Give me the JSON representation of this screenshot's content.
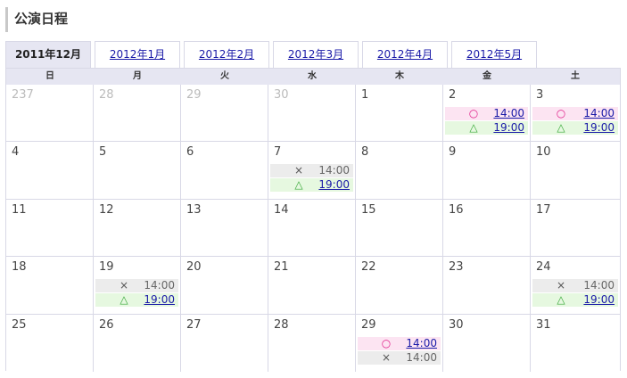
{
  "title": "公演日程",
  "tabs": [
    {
      "label": "2011年12月",
      "active": true
    },
    {
      "label": "2012年1月",
      "active": false
    },
    {
      "label": "2012年2月",
      "active": false
    },
    {
      "label": "2012年3月",
      "active": false
    },
    {
      "label": "2012年4月",
      "active": false
    },
    {
      "label": "2012年5月",
      "active": false
    }
  ],
  "weekdays": [
    "日",
    "月",
    "火",
    "水",
    "木",
    "金",
    "土"
  ],
  "marks": {
    "circle": "○",
    "triangle": "△",
    "cross": "×"
  },
  "colors": {
    "header_bg": "#e6e6f2",
    "border": "#d8d8e6",
    "circle_bg": "#fce4f2",
    "circle_mark": "#e0208a",
    "triangle_bg": "#e6f8e0",
    "triangle_mark": "#38a838",
    "cross_bg": "#ececec",
    "link": "#1a1aa8"
  },
  "weeks": [
    [
      {
        "day": "237",
        "other": true
      },
      {
        "day": "28",
        "other": true
      },
      {
        "day": "29",
        "other": true
      },
      {
        "day": "30",
        "other": true
      },
      {
        "day": "1"
      },
      {
        "day": "2",
        "perfs": [
          {
            "status": "circle",
            "time": "14:00"
          },
          {
            "status": "triangle",
            "time": "19:00"
          }
        ]
      },
      {
        "day": "3",
        "perfs": [
          {
            "status": "circle",
            "time": "14:00"
          },
          {
            "status": "triangle",
            "time": "19:00"
          }
        ]
      }
    ],
    [
      {
        "day": "4"
      },
      {
        "day": "5"
      },
      {
        "day": "6"
      },
      {
        "day": "7",
        "perfs": [
          {
            "status": "cross",
            "time": "14:00"
          },
          {
            "status": "triangle",
            "time": "19:00"
          }
        ]
      },
      {
        "day": "8"
      },
      {
        "day": "9"
      },
      {
        "day": "10"
      }
    ],
    [
      {
        "day": "11"
      },
      {
        "day": "12"
      },
      {
        "day": "13"
      },
      {
        "day": "14"
      },
      {
        "day": "15"
      },
      {
        "day": "16"
      },
      {
        "day": "17"
      }
    ],
    [
      {
        "day": "18"
      },
      {
        "day": "19",
        "perfs": [
          {
            "status": "cross",
            "time": "14:00"
          },
          {
            "status": "triangle",
            "time": "19:00"
          }
        ]
      },
      {
        "day": "20"
      },
      {
        "day": "21"
      },
      {
        "day": "22"
      },
      {
        "day": "23"
      },
      {
        "day": "24",
        "perfs": [
          {
            "status": "cross",
            "time": "14:00"
          },
          {
            "status": "triangle",
            "time": "19:00"
          }
        ]
      }
    ],
    [
      {
        "day": "25"
      },
      {
        "day": "26"
      },
      {
        "day": "27"
      },
      {
        "day": "28"
      },
      {
        "day": "29",
        "perfs": [
          {
            "status": "circle",
            "time": "14:00"
          },
          {
            "status": "cross",
            "time": "14:00"
          }
        ]
      },
      {
        "day": "30"
      },
      {
        "day": "31"
      }
    ]
  ]
}
